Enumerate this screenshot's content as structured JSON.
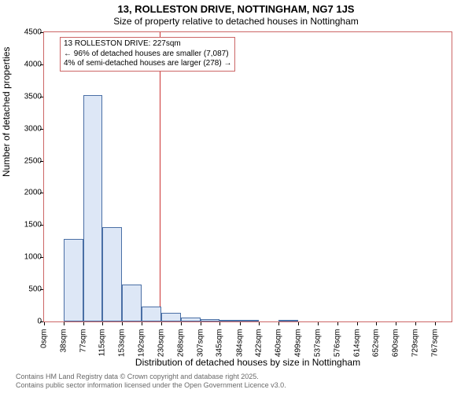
{
  "title_main": "13, ROLLESTON DRIVE, NOTTINGHAM, NG7 1JS",
  "title_sub": "Size of property relative to detached houses in Nottingham",
  "ylabel": "Number of detached properties",
  "xlabel": "Distribution of detached houses by size in Nottingham",
  "ylim_max": 4500,
  "ytick_step": 500,
  "yticks": [
    0,
    500,
    1000,
    1500,
    2000,
    2500,
    3000,
    3500,
    4000,
    4500
  ],
  "xmax": 800,
  "xticks": [
    {
      "pos": 0,
      "label": "0sqm"
    },
    {
      "pos": 38,
      "label": "38sqm"
    },
    {
      "pos": 77,
      "label": "77sqm"
    },
    {
      "pos": 115,
      "label": "115sqm"
    },
    {
      "pos": 153,
      "label": "153sqm"
    },
    {
      "pos": 192,
      "label": "192sqm"
    },
    {
      "pos": 230,
      "label": "230sqm"
    },
    {
      "pos": 268,
      "label": "268sqm"
    },
    {
      "pos": 307,
      "label": "307sqm"
    },
    {
      "pos": 345,
      "label": "345sqm"
    },
    {
      "pos": 384,
      "label": "384sqm"
    },
    {
      "pos": 422,
      "label": "422sqm"
    },
    {
      "pos": 460,
      "label": "460sqm"
    },
    {
      "pos": 499,
      "label": "499sqm"
    },
    {
      "pos": 537,
      "label": "537sqm"
    },
    {
      "pos": 576,
      "label": "576sqm"
    },
    {
      "pos": 614,
      "label": "614sqm"
    },
    {
      "pos": 652,
      "label": "652sqm"
    },
    {
      "pos": 690,
      "label": "690sqm"
    },
    {
      "pos": 729,
      "label": "729sqm"
    },
    {
      "pos": 767,
      "label": "767sqm"
    }
  ],
  "bars": [
    {
      "x0": 38,
      "x1": 77,
      "value": 1280
    },
    {
      "x0": 77,
      "x1": 115,
      "value": 3520
    },
    {
      "x0": 115,
      "x1": 153,
      "value": 1470
    },
    {
      "x0": 153,
      "x1": 192,
      "value": 580
    },
    {
      "x0": 192,
      "x1": 230,
      "value": 230
    },
    {
      "x0": 230,
      "x1": 268,
      "value": 130
    },
    {
      "x0": 268,
      "x1": 307,
      "value": 60
    },
    {
      "x0": 307,
      "x1": 345,
      "value": 40
    },
    {
      "x0": 345,
      "x1": 384,
      "value": 20
    },
    {
      "x0": 384,
      "x1": 422,
      "value": 10
    },
    {
      "x0": 422,
      "x1": 460,
      "value": 0
    },
    {
      "x0": 460,
      "x1": 499,
      "value": 30
    },
    {
      "x0": 499,
      "x1": 537,
      "value": 0
    },
    {
      "x0": 537,
      "x1": 576,
      "value": 0
    },
    {
      "x0": 576,
      "x1": 614,
      "value": 0
    },
    {
      "x0": 614,
      "x1": 652,
      "value": 0
    },
    {
      "x0": 652,
      "x1": 690,
      "value": 0
    },
    {
      "x0": 690,
      "x1": 729,
      "value": 0
    },
    {
      "x0": 729,
      "x1": 767,
      "value": 0
    }
  ],
  "bar_fill": "#dde7f6",
  "bar_border": "#4a6fa5",
  "plot_border_color": "#cc6666",
  "marker_pos": 227,
  "marker_color": "#cc3333",
  "anno_border": "#cc6666",
  "anno_line1": "13 ROLLESTON DRIVE: 227sqm",
  "anno_line2": "← 96% of detached houses are smaller (7,087)",
  "anno_line3": "4% of semi-detached houses are larger (278) →",
  "footer1": "Contains HM Land Registry data © Crown copyright and database right 2025.",
  "footer2": "Contains public sector information licensed under the Open Government Licence v3.0."
}
